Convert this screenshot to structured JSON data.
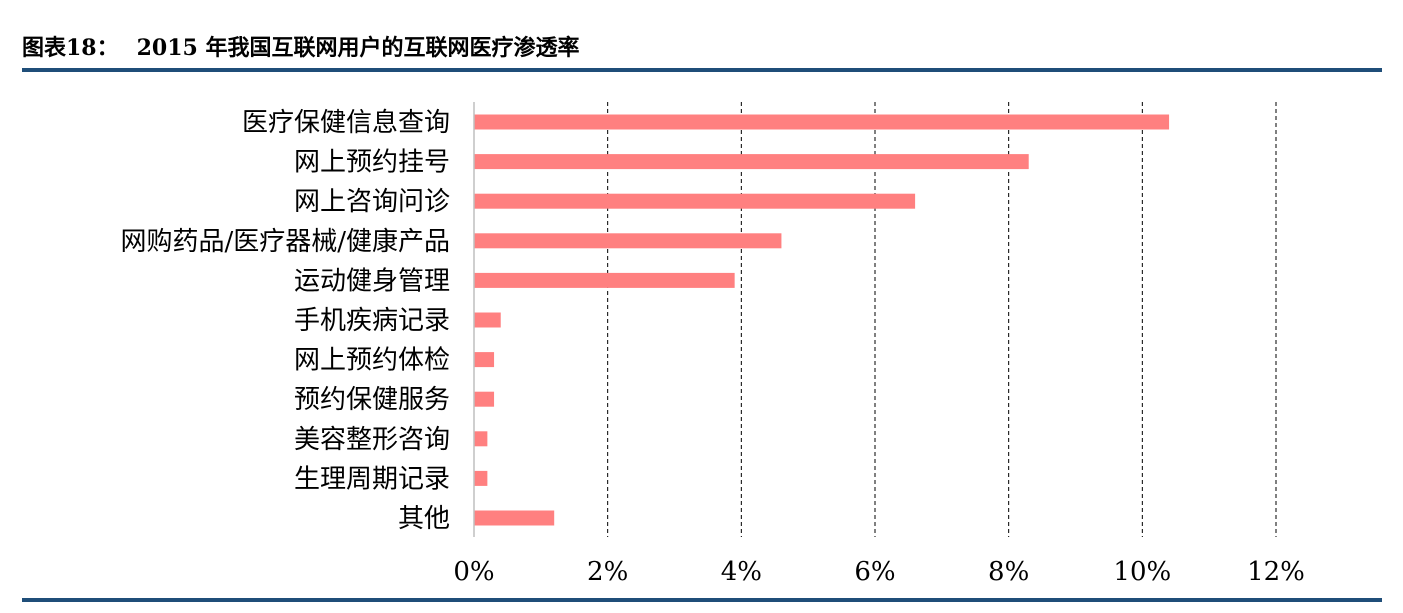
{
  "header": {
    "label": "图表18：",
    "title": "2015 年我国互联网用户的互联网医疗渗透率"
  },
  "colors": {
    "bar": "#ff8080",
    "rule": "#1f4e79",
    "grid": "#000000"
  },
  "chart_data": {
    "type": "bar",
    "orientation": "horizontal",
    "title": "",
    "xlabel": "",
    "ylabel": "",
    "categories": [
      "医疗保健信息查询",
      "网上预约挂号",
      "网上咨询问诊",
      "网购药品/医疗器械/健康产品",
      "运动健身管理",
      "手机疾病记录",
      "网上预约体检",
      "预约保健服务",
      "美容整形咨询",
      "生理周期记录",
      "其他"
    ],
    "values": [
      10.4,
      8.3,
      6.6,
      4.6,
      3.9,
      0.4,
      0.3,
      0.3,
      0.2,
      0.2,
      1.2
    ],
    "xlim": [
      0,
      12
    ],
    "ticks": [
      "0%",
      "2%",
      "4%",
      "6%",
      "8%",
      "10%",
      "12%"
    ],
    "grid": "vertical dashed",
    "legend": "none"
  }
}
